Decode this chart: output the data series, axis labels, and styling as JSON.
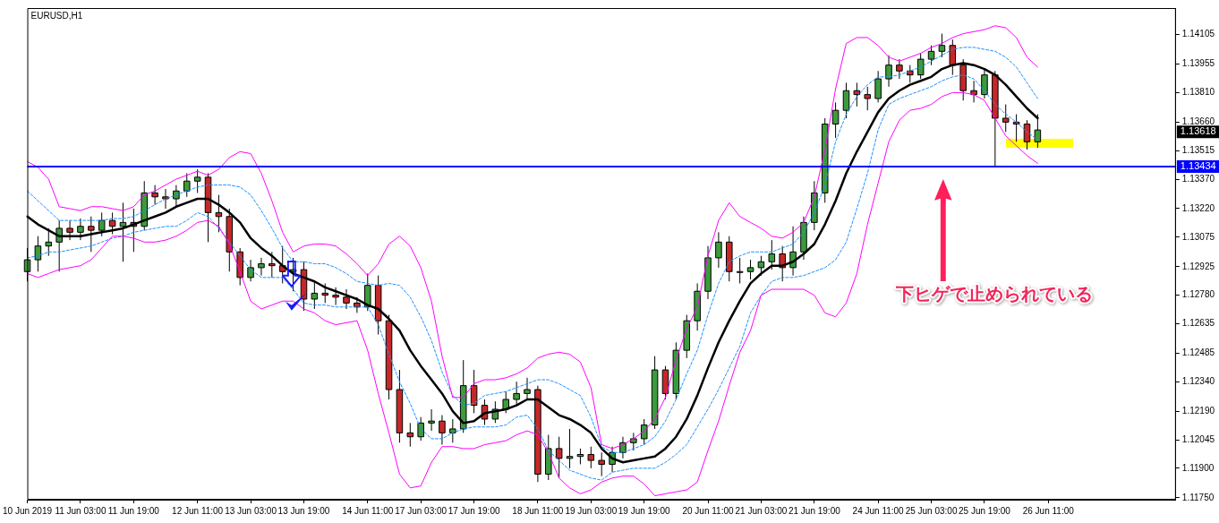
{
  "chart_data": {
    "type": "candlestick",
    "title": "EURUSD,H1",
    "categories": [
      "10 Jun 2019",
      null,
      null,
      null,
      null,
      "11 Jun 03:00",
      null,
      null,
      null,
      null,
      "11 Jun 19:00",
      null,
      null,
      null,
      null,
      null,
      "12 Jun 11:00",
      null,
      null,
      null,
      null,
      "13 Jun 03:00",
      null,
      null,
      null,
      null,
      "13 Jun 19:00",
      null,
      null,
      null,
      null,
      null,
      "14 Jun 11:00",
      null,
      null,
      null,
      null,
      "17 Jun 03:00",
      null,
      null,
      null,
      null,
      "17 Jun 19:00",
      null,
      null,
      null,
      null,
      null,
      "18 Jun 11:00",
      null,
      null,
      null,
      null,
      "19 Jun 03:00",
      null,
      null,
      null,
      null,
      "19 Jun 19:00",
      null,
      null,
      null,
      null,
      null,
      "20 Jun 11:00",
      null,
      null,
      null,
      null,
      "21 Jun 03:00",
      null,
      null,
      null,
      null,
      "21 Jun 19:00",
      null,
      null,
      null,
      null,
      null,
      "24 Jun 11:00",
      null,
      null,
      null,
      null,
      "25 Jun 03:00",
      null,
      null,
      null,
      null,
      "25 Jun 19:00",
      null,
      null,
      null,
      null,
      null,
      "26 Jun 11:00",
      null,
      null,
      null,
      null,
      null,
      null,
      null,
      null,
      null,
      null,
      null,
      null
    ],
    "ohlc": [
      [
        1.129,
        1.1302,
        1.1285,
        1.1296
      ],
      [
        1.1296,
        1.1308,
        1.129,
        1.1303
      ],
      [
        1.1303,
        1.1312,
        1.1298,
        1.1305
      ],
      [
        1.1305,
        1.1316,
        1.129,
        1.1312
      ],
      [
        1.1312,
        1.1316,
        1.1306,
        1.131
      ],
      [
        1.131,
        1.1317,
        1.1306,
        1.1313
      ],
      [
        1.1313,
        1.1318,
        1.13,
        1.1311
      ],
      [
        1.1311,
        1.132,
        1.1308,
        1.1316
      ],
      [
        1.1316,
        1.132,
        1.1309,
        1.1313
      ],
      [
        1.1313,
        1.1325,
        1.1295,
        1.1315
      ],
      [
        1.1315,
        1.1322,
        1.13,
        1.1313
      ],
      [
        1.1313,
        1.1336,
        1.1311,
        1.133
      ],
      [
        1.133,
        1.1334,
        1.1324,
        1.1328
      ],
      [
        1.1328,
        1.1332,
        1.1322,
        1.1327
      ],
      [
        1.1327,
        1.1334,
        1.1323,
        1.1331
      ],
      [
        1.1331,
        1.134,
        1.1328,
        1.1336
      ],
      [
        1.1336,
        1.1342,
        1.133,
        1.1338
      ],
      [
        1.1338,
        1.134,
        1.1305,
        1.132
      ],
      [
        1.132,
        1.1329,
        1.131,
        1.1318
      ],
      [
        1.1318,
        1.1322,
        1.129,
        1.13
      ],
      [
        1.13,
        1.1302,
        1.1283,
        1.1287
      ],
      [
        1.1287,
        1.1296,
        1.1285,
        1.1292
      ],
      [
        1.1292,
        1.1297,
        1.1288,
        1.1294
      ],
      [
        1.1294,
        1.13,
        1.1287,
        1.1293
      ],
      [
        1.1293,
        1.1303,
        1.1284,
        1.129
      ],
      [
        1.129,
        1.1297,
        1.128,
        1.1291
      ],
      [
        1.1291,
        1.1295,
        1.127,
        1.1276
      ],
      [
        1.1276,
        1.1285,
        1.1271,
        1.1279
      ],
      [
        1.1279,
        1.1284,
        1.1274,
        1.1278
      ],
      [
        1.1278,
        1.1282,
        1.1273,
        1.1277
      ],
      [
        1.1277,
        1.1281,
        1.1271,
        1.1274
      ],
      [
        1.1274,
        1.1277,
        1.1269,
        1.1272
      ],
      [
        1.1272,
        1.1289,
        1.127,
        1.1283
      ],
      [
        1.1283,
        1.1288,
        1.1258,
        1.1265
      ],
      [
        1.1265,
        1.1268,
        1.1225,
        1.123
      ],
      [
        1.123,
        1.124,
        1.1203,
        1.1208
      ],
      [
        1.1208,
        1.1213,
        1.1201,
        1.1206
      ],
      [
        1.1206,
        1.1216,
        1.1204,
        1.1213
      ],
      [
        1.1213,
        1.122,
        1.1209,
        1.1214
      ],
      [
        1.1214,
        1.1217,
        1.1202,
        1.1208
      ],
      [
        1.1208,
        1.1215,
        1.1203,
        1.121
      ],
      [
        1.121,
        1.1245,
        1.1208,
        1.1232
      ],
      [
        1.1232,
        1.124,
        1.1218,
        1.1222
      ],
      [
        1.1222,
        1.1225,
        1.1212,
        1.1215
      ],
      [
        1.1215,
        1.1224,
        1.1213,
        1.122
      ],
      [
        1.122,
        1.1229,
        1.1218,
        1.1225
      ],
      [
        1.1225,
        1.1234,
        1.1222,
        1.1228
      ],
      [
        1.1228,
        1.1236,
        1.1225,
        1.123
      ],
      [
        1.123,
        1.1232,
        1.1183,
        1.1187
      ],
      [
        1.1187,
        1.1207,
        1.1184,
        1.12
      ],
      [
        1.12,
        1.1206,
        1.1185,
        1.1195
      ],
      [
        1.1195,
        1.121,
        1.119,
        1.1196
      ],
      [
        1.1196,
        1.12,
        1.1192,
        1.1197
      ],
      [
        1.1197,
        1.1201,
        1.119,
        1.1194
      ],
      [
        1.1194,
        1.1198,
        1.1186,
        1.1192
      ],
      [
        1.1192,
        1.1201,
        1.1188,
        1.1198
      ],
      [
        1.1198,
        1.1206,
        1.1195,
        1.1203
      ],
      [
        1.1203,
        1.1208,
        1.1199,
        1.1205
      ],
      [
        1.1205,
        1.1215,
        1.1202,
        1.1212
      ],
      [
        1.1212,
        1.1247,
        1.121,
        1.124
      ],
      [
        1.124,
        1.1242,
        1.1225,
        1.1228
      ],
      [
        1.1228,
        1.1254,
        1.1225,
        1.125
      ],
      [
        1.125,
        1.1268,
        1.1246,
        1.1265
      ],
      [
        1.1265,
        1.1284,
        1.126,
        1.128
      ],
      [
        1.128,
        1.1303,
        1.1276,
        1.1297
      ],
      [
        1.1297,
        1.131,
        1.1292,
        1.1305
      ],
      [
        1.1305,
        1.1308,
        1.1285,
        1.129
      ],
      [
        1.129,
        1.1297,
        1.1284,
        1.129
      ],
      [
        1.129,
        1.1296,
        1.1286,
        1.1292
      ],
      [
        1.1292,
        1.1298,
        1.1288,
        1.1295
      ],
      [
        1.1295,
        1.1306,
        1.1291,
        1.1299
      ],
      [
        1.1299,
        1.1303,
        1.1285,
        1.1292
      ],
      [
        1.1292,
        1.1313,
        1.1288,
        1.13
      ],
      [
        1.13,
        1.1318,
        1.1296,
        1.1315
      ],
      [
        1.1315,
        1.1336,
        1.1311,
        1.133
      ],
      [
        1.133,
        1.1368,
        1.1325,
        1.1365
      ],
      [
        1.1365,
        1.1376,
        1.1358,
        1.1372
      ],
      [
        1.1372,
        1.1386,
        1.1368,
        1.1382
      ],
      [
        1.1382,
        1.1386,
        1.1374,
        1.138
      ],
      [
        1.138,
        1.1384,
        1.1372,
        1.1378
      ],
      [
        1.1378,
        1.1392,
        1.1376,
        1.1388
      ],
      [
        1.1388,
        1.14,
        1.1384,
        1.1395
      ],
      [
        1.1395,
        1.1398,
        1.1388,
        1.1392
      ],
      [
        1.1392,
        1.1395,
        1.1386,
        1.139
      ],
      [
        1.139,
        1.1401,
        1.1388,
        1.1398
      ],
      [
        1.1398,
        1.1405,
        1.1395,
        1.1402
      ],
      [
        1.1402,
        1.1411,
        1.1399,
        1.1405
      ],
      [
        1.1405,
        1.1408,
        1.139,
        1.1395
      ],
      [
        1.1395,
        1.1398,
        1.1377,
        1.1382
      ],
      [
        1.1382,
        1.1387,
        1.1376,
        1.138
      ],
      [
        1.138,
        1.1393,
        1.1378,
        1.139
      ],
      [
        1.139,
        1.1392,
        1.1343,
        1.1368
      ],
      [
        1.1368,
        1.1375,
        1.1361,
        1.1366
      ],
      [
        1.1366,
        1.137,
        1.1356,
        1.1365
      ],
      [
        1.1365,
        1.1367,
        1.1352,
        1.1356
      ],
      [
        1.1356,
        1.137,
        1.1353,
        1.1362
      ],
      null,
      null,
      null,
      null,
      null,
      null,
      null,
      null,
      null,
      null,
      null,
      null,
      null
    ],
    "colors": [
      "#3c9b3c",
      "#3c9b3c",
      "#3c9b3c",
      "#3c9b3c",
      "#c62828",
      "#3c9b3c",
      "#c62828",
      "#3c9b3c",
      "#c62828",
      "#3c9b3c",
      "#c62828",
      "#3c9b3c",
      "#c62828",
      "#c62828",
      "#3c9b3c",
      "#3c9b3c",
      "#3c9b3c",
      "#c62828",
      "#c62828",
      "#c62828",
      "#c62828",
      "#3c9b3c",
      "#3c9b3c",
      "#c62828",
      "#c62828",
      "#3c9b3c",
      "#c62828",
      "#3c9b3c",
      "#c62828",
      "#c62828",
      "#c62828",
      "#c62828",
      "#3c9b3c",
      "#c62828",
      "#c62828",
      "#c62828",
      "#c62828",
      "#3c9b3c",
      "#3c9b3c",
      "#c62828",
      "#3c9b3c",
      "#3c9b3c",
      "#c62828",
      "#c62828",
      "#3c9b3c",
      "#3c9b3c",
      "#3c9b3c",
      "#3c9b3c",
      "#c62828",
      "#3c9b3c",
      "#c62828",
      "#3c9b3c",
      "#3c9b3c",
      "#c62828",
      "#c62828",
      "#3c9b3c",
      "#3c9b3c",
      "#3c9b3c",
      "#3c9b3c",
      "#3c9b3c",
      "#c62828",
      "#3c9b3c",
      "#3c9b3c",
      "#3c9b3c",
      "#3c9b3c",
      "#3c9b3c",
      "#c62828",
      "#3c9b3c",
      "#3c9b3c",
      "#3c9b3c",
      "#3c9b3c",
      "#c62828",
      "#3c9b3c",
      "#3c9b3c",
      "#3c9b3c",
      "#3c9b3c",
      "#3c9b3c",
      "#3c9b3c",
      "#c62828",
      "#c62828",
      "#3c9b3c",
      "#3c9b3c",
      "#c62828",
      "#c62828",
      "#3c9b3c",
      "#3c9b3c",
      "#3c9b3c",
      "#c62828",
      "#c62828",
      "#c62828",
      "#3c9b3c",
      "#c62828",
      "#c62828",
      "#c62828",
      "#c62828",
      "#3c9b3c",
      null,
      null,
      null,
      null,
      null,
      null,
      null,
      null,
      null,
      null,
      null,
      null,
      null
    ],
    "series": [
      {
        "type": "line",
        "color": "#000000",
        "line_style": "solid",
        "values": [
          1.1318,
          1.1314,
          1.1311,
          1.1308,
          1.1308,
          1.1308,
          1.1309,
          1.131,
          1.1311,
          1.1312,
          1.1314,
          1.1316,
          1.1318,
          1.132,
          1.1323,
          1.1325,
          1.1327,
          1.1327,
          1.1324,
          1.132,
          1.1315,
          1.1307,
          1.1302,
          1.1298,
          1.1293,
          1.1289,
          1.1287,
          1.1285,
          1.1282,
          1.128,
          1.1278,
          1.1276,
          1.1273,
          1.1271,
          1.1266,
          1.126,
          1.125,
          1.1242,
          1.1235,
          1.1228,
          1.1219,
          1.1213,
          1.1214,
          1.1218,
          1.1219,
          1.122,
          1.1222,
          1.1225,
          1.1225,
          1.1221,
          1.1217,
          1.1215,
          1.1212,
          1.1208,
          1.12,
          1.1195,
          1.1193,
          1.1194,
          1.1195,
          1.1196,
          1.12,
          1.1206,
          1.1215,
          1.1227,
          1.1241,
          1.1254,
          1.1265,
          1.1275,
          1.1284,
          1.1289,
          1.1293,
          1.1293,
          1.1295,
          1.1299,
          1.1304,
          1.1314,
          1.1326,
          1.134,
          1.1351,
          1.1361,
          1.1371,
          1.1378,
          1.1382,
          1.1385,
          1.1387,
          1.1389,
          1.1393,
          1.1395,
          1.1396,
          1.1395,
          1.1393,
          1.139,
          1.1385,
          1.1379,
          1.1373,
          1.1368,
          null,
          null,
          null,
          null,
          null,
          null,
          null,
          null,
          null,
          null,
          null,
          null,
          null
        ]
      },
      {
        "type": "line",
        "color": "#ff00ff",
        "line_style": "solid",
        "values": [
          1.1346,
          1.1343,
          1.1337,
          1.1323,
          1.1322,
          1.1321,
          1.1323,
          1.1323,
          1.1322,
          1.1321,
          1.1323,
          1.1329,
          1.1331,
          1.1334,
          1.1337,
          1.1339,
          1.1341,
          1.1339,
          1.1342,
          1.1348,
          1.1351,
          1.135,
          1.134,
          1.1326,
          1.131,
          1.13,
          1.1303,
          1.1304,
          1.1304,
          1.1303,
          1.1299,
          1.1294,
          1.1288,
          1.1294,
          1.1304,
          1.1308,
          1.1303,
          1.1292,
          1.1275,
          1.1247,
          1.1226,
          1.1226,
          1.1233,
          1.1235,
          1.1235,
          1.1236,
          1.1238,
          1.1241,
          1.1246,
          1.1248,
          1.1249,
          1.1248,
          1.1244,
          1.1231,
          1.1202,
          1.12,
          1.1202,
          1.1205,
          1.1209,
          1.1215,
          1.1226,
          1.1245,
          1.1261,
          1.1272,
          1.1298,
          1.1316,
          1.1325,
          1.1318,
          1.1315,
          1.1312,
          1.1308,
          1.1307,
          1.131,
          1.1315,
          1.1328,
          1.1352,
          1.1383,
          1.1406,
          1.1409,
          1.1409,
          1.1405,
          1.1399,
          1.1397,
          1.1399,
          1.1401,
          1.1404,
          1.1406,
          1.1409,
          1.1411,
          1.1412,
          1.1413,
          1.1415,
          1.1414,
          1.1409,
          1.1399,
          1.1394,
          null,
          null,
          null,
          null,
          null,
          null,
          null,
          null,
          null,
          null,
          null,
          null,
          null
        ]
      },
      {
        "type": "line",
        "color": "#ff00ff",
        "line_style": "solid",
        "values": [
          1.1289,
          1.1287,
          1.1289,
          1.1291,
          1.1292,
          1.1293,
          1.1296,
          1.1302,
          1.1308,
          1.1308,
          1.1307,
          1.1305,
          1.1305,
          1.1306,
          1.1308,
          1.1311,
          1.1315,
          1.1316,
          1.1313,
          1.1304,
          1.129,
          1.1275,
          1.1271,
          1.1273,
          1.1275,
          1.1275,
          1.1271,
          1.1269,
          1.1265,
          1.1263,
          1.1264,
          1.1265,
          1.125,
          1.1228,
          1.1208,
          1.1187,
          1.118,
          1.1181,
          1.1193,
          1.1201,
          1.1201,
          1.12,
          1.12,
          1.1202,
          1.1203,
          1.1204,
          1.1207,
          1.1209,
          1.1207,
          1.1198,
          1.1185,
          1.118,
          1.1177,
          1.1179,
          1.1183,
          1.1185,
          1.1186,
          1.1186,
          1.1182,
          1.1176,
          1.1177,
          1.1178,
          1.1179,
          1.1183,
          1.1199,
          1.1214,
          1.1232,
          1.1249,
          1.126,
          1.1278,
          1.1281,
          1.1281,
          1.1281,
          1.1281,
          1.1278,
          1.1269,
          1.1267,
          1.1274,
          1.1289,
          1.1314,
          1.1335,
          1.1356,
          1.1367,
          1.1372,
          1.1373,
          1.1375,
          1.1379,
          1.1381,
          1.1381,
          1.138,
          1.1377,
          1.1368,
          1.1359,
          1.1354,
          1.1349,
          1.1345,
          null,
          null,
          null,
          null,
          null,
          null,
          null,
          null,
          null,
          null,
          null,
          null,
          null
        ]
      },
      {
        "type": "line",
        "color": "#1e90ff",
        "line_style": "dashed",
        "values": [
          1.1331,
          1.1326,
          1.1321,
          1.1316,
          1.1316,
          1.1316,
          1.1316,
          1.1316,
          1.1317,
          1.1317,
          1.1318,
          1.1321,
          1.1324,
          1.1327,
          1.1329,
          1.1331,
          1.1333,
          1.1334,
          1.1334,
          1.1334,
          1.1333,
          1.1329,
          1.1321,
          1.1312,
          1.1302,
          1.1295,
          1.1295,
          1.1294,
          1.1294,
          1.1292,
          1.1289,
          1.1285,
          1.1284,
          1.1283,
          1.1284,
          1.1283,
          1.1277,
          1.1267,
          1.1255,
          1.1239,
          1.1227,
          1.1222,
          1.1223,
          1.1227,
          1.1228,
          1.1229,
          1.1231,
          1.1233,
          1.1235,
          1.1235,
          1.1233,
          1.123,
          1.1227,
          1.1216,
          1.1201,
          1.1198,
          1.1198,
          1.12,
          1.1202,
          1.1206,
          1.1214,
          1.1225,
          1.1238,
          1.125,
          1.1268,
          1.1284,
          1.1295,
          1.1298,
          1.13,
          1.13,
          1.13,
          1.1302,
          1.1304,
          1.131,
          1.132,
          1.1334,
          1.1356,
          1.137,
          1.1379,
          1.1385,
          1.1389,
          1.1389,
          1.139,
          1.1392,
          1.1394,
          1.1397,
          1.14,
          1.1403,
          1.1404,
          1.1404,
          1.1403,
          1.1402,
          1.1399,
          1.1394,
          1.1386,
          1.1378,
          null,
          null,
          null,
          null,
          null,
          null,
          null,
          null,
          null,
          null,
          null,
          null,
          null
        ]
      },
      {
        "type": "line",
        "color": "#1e90ff",
        "line_style": "dashed",
        "values": [
          1.1297,
          1.1298,
          1.13,
          1.13,
          1.1301,
          1.1302,
          1.1303,
          1.1305,
          1.1307,
          1.1308,
          1.131,
          1.1311,
          1.1312,
          1.1313,
          1.1313,
          1.1316,
          1.132,
          1.1318,
          1.1312,
          1.1305,
          1.1298,
          1.1291,
          1.1287,
          1.1287,
          1.1287,
          1.1281,
          1.1274,
          1.1273,
          1.1273,
          1.1272,
          1.1272,
          1.1272,
          1.1272,
          1.1263,
          1.1248,
          1.1234,
          1.1223,
          1.121,
          1.1205,
          1.1205,
          1.1208,
          1.121,
          1.1211,
          1.1211,
          1.1211,
          1.1212,
          1.1216,
          1.1217,
          1.121,
          1.1199,
          1.1194,
          1.1189,
          1.1187,
          1.1185,
          1.1184,
          1.1188,
          1.1189,
          1.119,
          1.119,
          1.119,
          1.1193,
          1.1197,
          1.1202,
          1.1211,
          1.122,
          1.123,
          1.1241,
          1.1252,
          1.1269,
          1.1278,
          1.1285,
          1.1287,
          1.1287,
          1.1288,
          1.129,
          1.1292,
          1.1296,
          1.1305,
          1.1322,
          1.134,
          1.1362,
          1.1375,
          1.1378,
          1.138,
          1.1382,
          1.1384,
          1.1387,
          1.1389,
          1.139,
          1.1388,
          1.1382,
          1.1375,
          1.137,
          1.1366,
          1.1361,
          1.1357,
          null,
          null,
          null,
          null,
          null,
          null,
          null,
          null,
          null,
          null,
          null,
          null,
          null
        ]
      }
    ],
    "ylim": [
      1.1174,
      1.1424
    ],
    "yticks": [
      {
        "value": 1.1175,
        "label": "1.11750"
      },
      {
        "value": 1.119,
        "label": "1.11900"
      },
      1.12045,
      {
        "value": 1.1219,
        "label": "1.12190"
      },
      {
        "value": 1.1234,
        "label": "1.12340"
      },
      1.12485,
      1.12635,
      {
        "value": 1.1278,
        "label": "1.12780"
      },
      1.12925,
      1.13075,
      {
        "value": 1.1322,
        "label": "1.13220"
      },
      {
        "value": 1.1337,
        "label": "1.13370"
      },
      1.13515,
      {
        "value": 1.1366,
        "label": "1.13660"
      },
      {
        "value": 1.1381,
        "label": "1.13810"
      },
      1.13955,
      1.14105
    ],
    "grid": false,
    "ref_lines": [
      {
        "axis": "y",
        "value": 1.13434,
        "label": "1.13434",
        "color": "#0000ff"
      }
    ],
    "annotations": [
      "1.13618",
      "下ヒゲで止められている"
    ]
  }
}
